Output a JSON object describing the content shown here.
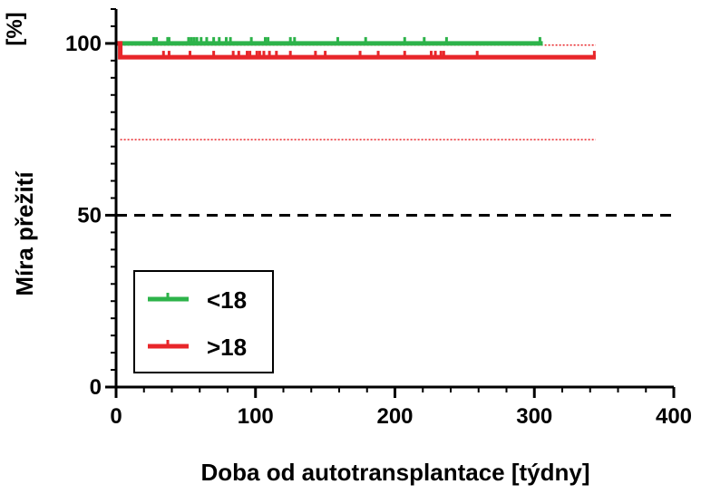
{
  "chart_data": {
    "type": "line",
    "xlabel": "Doba od autotransplantace [týdny]",
    "ylabel": "Míra přežití",
    "yunit": "[%]",
    "xlim": [
      0,
      400
    ],
    "ylim": [
      0,
      110
    ],
    "xticks": [
      0,
      100,
      200,
      300,
      400
    ],
    "yticks": [
      0,
      50,
      100
    ],
    "xticks_labels": [
      "0",
      "100",
      "200",
      "300",
      "400"
    ],
    "yticks_labels": [
      "0",
      "50",
      "100"
    ],
    "grid": false,
    "legend_position": "bottom-left",
    "series": [
      {
        "name": "<18",
        "color": "#2db34a",
        "points": [
          [
            0,
            100
          ],
          [
            306,
            100
          ]
        ],
        "censored": [
          27,
          29,
          37,
          38,
          52,
          54,
          56,
          58,
          61,
          65,
          70,
          74,
          79,
          82,
          97,
          107,
          109,
          125,
          128,
          159,
          179,
          207,
          221,
          237,
          304
        ]
      },
      {
        "name": ">18",
        "color": "#e8262a",
        "points": [
          [
            0,
            100
          ],
          [
            3,
            100
          ],
          [
            3,
            96
          ],
          [
            344,
            96
          ]
        ],
        "censored": [
          34,
          38,
          53,
          70,
          84,
          88,
          94,
          96,
          101,
          103,
          106,
          110,
          115,
          125,
          143,
          150,
          175,
          188,
          207,
          226,
          229,
          233,
          235,
          259,
          343
        ],
        "ci_upper": 99.5,
        "ci_lower": 72,
        "ci_x": [
          3,
          344
        ]
      }
    ],
    "reference_line": {
      "y": 50,
      "style": "dashed",
      "color": "#000000"
    }
  }
}
